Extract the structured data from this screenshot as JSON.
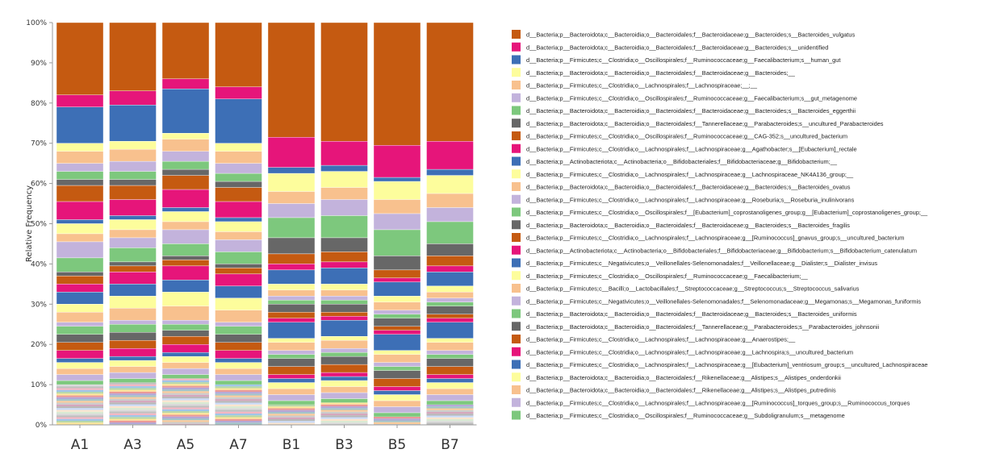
{
  "chart_data": {
    "type": "bar",
    "stacked": true,
    "title": "",
    "xlabel": "",
    "ylabel": "Relative Frequency",
    "ylim": [
      0,
      100
    ],
    "yticks": [
      "0%",
      "10%",
      "20%",
      "30%",
      "40%",
      "50%",
      "60%",
      "70%",
      "80%",
      "90%",
      "100%"
    ],
    "categories": [
      "A1",
      "A3",
      "A5",
      "A7",
      "B1",
      "B3",
      "B5",
      "B7"
    ],
    "legend_position": "right",
    "series": [
      {
        "name": "d__Bacteria;p__Bacteroidota;c__Bacteroidia;o__Bacteroidales;f__Bacteroidaceae;g__Bacteroides;s__Bacteroides_vulgatus",
        "color": "#c55a11",
        "values": [
          18.0,
          17.0,
          14.0,
          16.0,
          28.5,
          29.5,
          30.5,
          29.5
        ]
      },
      {
        "name": "d__Bacteria;p__Bacteroidota;c__Bacteroidia;o__Bacteroidales;f__Bacteroidaceae;g__Bacteroides;s__unidentified",
        "color": "#e6157a",
        "values": [
          3.0,
          3.5,
          2.5,
          3.0,
          7.5,
          6.0,
          8.0,
          7.0
        ]
      },
      {
        "name": "d__Bacteria;p__Firmicutes;c__Clostridia;o__Oscillospirales;f__Ruminococcaceae;g__Faecalibacterium;s__human_gut",
        "color": "#3d6fb6",
        "values": [
          9.0,
          9.0,
          11.0,
          11.0,
          1.5,
          1.5,
          1.0,
          1.5
        ]
      },
      {
        "name": "d__Bacteria;p__Bacteroidota;c__Bacteroidia;o__Bacteroidales;f__Bacteroidaceae;g__Bacteroides;__",
        "color": "#fdfd9c",
        "values": [
          2.0,
          2.0,
          1.5,
          2.0,
          4.5,
          4.0,
          4.5,
          4.5
        ]
      },
      {
        "name": "d__Bacteria;p__Firmicutes;c__Clostridia;o__Lachnospirales;f__Lachnospiraceae;__;__",
        "color": "#f8c18e",
        "values": [
          3.0,
          3.0,
          3.0,
          3.0,
          3.0,
          3.0,
          3.5,
          3.5
        ]
      },
      {
        "name": "d__Bacteria;p__Firmicutes;c__Clostridia;o__Oscillospirales;f__Ruminococcaceae;g__Faecalibacterium;s__gut_metagenome",
        "color": "#c3b3dc",
        "values": [
          2.0,
          2.5,
          2.5,
          2.5,
          3.5,
          4.0,
          4.0,
          3.5
        ]
      },
      {
        "name": "d__Bacteria;p__Bacteroidota;c__Bacteroidia;o__Bacteroidales;f__Bacteroidaceae;g__Bacteroides;s__Bacteroides_eggerthii",
        "color": "#7dc87d",
        "values": [
          2.0,
          2.0,
          2.0,
          2.0,
          5.0,
          5.5,
          6.5,
          5.5
        ]
      },
      {
        "name": "d__Bacteria;p__Bacteroidota;c__Bacteroidia;o__Bacteroidales;f__Tannerellaceae;g__Parabacteroides;s__uncultured_Parabacteroides",
        "color": "#676767",
        "values": [
          1.5,
          1.5,
          1.5,
          1.5,
          4.0,
          3.5,
          3.5,
          3.0
        ]
      },
      {
        "name": "d__Bacteria;p__Firmicutes;c__Clostridia;o__Oscillospirales;f__Ruminococcaceae;g__CAG-352;s__uncultured_bacterium",
        "color": "#c55a11",
        "values": [
          4.0,
          3.5,
          3.5,
          3.5,
          2.5,
          2.5,
          2.0,
          2.5
        ]
      },
      {
        "name": "d__Bacteria;p__Firmicutes;c__Clostridia;o__Lachnospirales;f__Lachnospiraceae;g__Agathobacter;s__[Eubacterium]_rectale",
        "color": "#e6157a",
        "values": [
          4.5,
          4.0,
          4.5,
          4.0,
          1.5,
          1.5,
          1.0,
          1.5
        ]
      },
      {
        "name": "d__Bacteria;p__Actinobacteriota;c__Actinobacteria;o__Bifidobacteriales;f__Bifidobacteriaceae;g__Bifidobacterium;__",
        "color": "#3d6fb6",
        "values": [
          1.0,
          1.0,
          1.0,
          1.0,
          3.5,
          4.0,
          3.5,
          3.5
        ]
      },
      {
        "name": "d__Bacteria;p__Firmicutes;c__Clostridia;o__Lachnospirales;f__Lachnospiraceae;g__Lachnospiraceae_NK4A136_group;__",
        "color": "#fdfd9c",
        "values": [
          2.5,
          2.5,
          2.5,
          2.5,
          1.5,
          1.5,
          1.5,
          1.5
        ]
      },
      {
        "name": "d__Bacteria;p__Bacteroidota;c__Bacteroidia;o__Bacteroidales;f__Bacteroidaceae;g__Bacteroides;s__Bacteroides_ovatus",
        "color": "#f8c18e",
        "values": [
          2.0,
          2.0,
          2.0,
          2.0,
          1.5,
          1.5,
          2.0,
          1.5
        ]
      },
      {
        "name": "d__Bacteria;p__Firmicutes;c__Clostridia;o__Lachnospirales;f__Lachnospiraceae;g__Roseburia;s__Roseburia_inulinivorans",
        "color": "#c3b3dc",
        "values": [
          4.0,
          2.5,
          3.5,
          3.0,
          1.0,
          1.0,
          1.0,
          1.0
        ]
      },
      {
        "name": "d__Bacteria;p__Firmicutes;c__Clostridia;o__Oscillospirales;f__[Eubacterium]_coprostanoligenes_group;g__[Eubacterium]_coprostanoligenes_group;__",
        "color": "#7dc87d",
        "values": [
          3.5,
          3.5,
          3.0,
          3.0,
          1.0,
          1.0,
          1.0,
          1.0
        ]
      },
      {
        "name": "d__Bacteria;p__Bacteroidota;c__Bacteroidia;o__Bacteroidales;f__Bacteroidaceae;g__Bacteroides;s__Bacteroides_fragilis",
        "color": "#676767",
        "values": [
          1.0,
          1.0,
          1.0,
          1.0,
          2.0,
          2.0,
          2.0,
          2.0
        ]
      },
      {
        "name": "d__Bacteria;p__Firmicutes;c__Clostridia;o__Lachnospirales;f__Lachnospiraceae;g__[Ruminococcus]_gnavus_group;s__uncultured_bacterium",
        "color": "#c55a11",
        "values": [
          2.0,
          1.5,
          1.5,
          1.5,
          1.5,
          1.0,
          1.0,
          1.0
        ]
      },
      {
        "name": "d__Bacteria;p__Actinobacteriota;c__Actinobacteria;o__Bifidobacteriales;f__Bifidobacteriaceae;g__Bifidobacterium;s__Bifidobacterium_catenulatum",
        "color": "#e6157a",
        "values": [
          2.0,
          3.0,
          3.5,
          3.0,
          1.0,
          1.0,
          1.0,
          1.0
        ]
      },
      {
        "name": "d__Bacteria;p__Firmicutes;c__Negativicutes;o__Veillonellales-Selenomonadales;f__Veillonellaceae;g__Dialister;s__Dialister_invisus",
        "color": "#3d6fb6",
        "values": [
          3.0,
          3.0,
          3.0,
          3.0,
          4.0,
          4.0,
          4.0,
          4.0
        ]
      },
      {
        "name": "d__Bacteria;p__Firmicutes;c__Clostridia;o__Oscillospirales;f__Ruminococcaceae;g__Faecalibacterium;__",
        "color": "#fdfd9c",
        "values": [
          2.0,
          3.0,
          3.5,
          3.0,
          1.0,
          1.0,
          1.0,
          1.0
        ]
      },
      {
        "name": "d__Bacteria;p__Firmicutes;c__Bacilli;o__Lactobacillales;f__Streptococcaceae;g__Streptococcus;s__Streptococcus_salivarius",
        "color": "#f8c18e",
        "values": [
          2.5,
          3.0,
          3.5,
          3.0,
          2.0,
          2.0,
          2.0,
          2.0
        ]
      },
      {
        "name": "d__Bacteria;p__Firmicutes;c__Negativicutes;o__Veillonellales-Selenomonadales;f__Selenomonadaceae;g__Megamonas;s__Megamonas_funiformis",
        "color": "#c3b3dc",
        "values": [
          1.0,
          1.0,
          1.0,
          1.0,
          1.0,
          1.0,
          1.0,
          1.0
        ]
      },
      {
        "name": "d__Bacteria;p__Bacteroidota;c__Bacteroidia;o__Bacteroidales;f__Bacteroidaceae;g__Bacteroides;s__Bacteroides_uniformis",
        "color": "#7dc87d",
        "values": [
          2.0,
          2.0,
          1.5,
          2.0,
          1.0,
          1.0,
          1.0,
          1.0
        ]
      },
      {
        "name": "d__Bacteria;p__Bacteroidota;c__Bacteroidia;o__Bacteroidales;f__Tannerellaceae;g__Parabacteroides;s__Parabacteroides_johnsonii",
        "color": "#676767",
        "values": [
          2.0,
          2.0,
          1.5,
          2.0,
          2.0,
          2.0,
          2.0,
          2.0
        ]
      },
      {
        "name": "d__Bacteria;p__Firmicutes;c__Clostridia;o__Lachnospirales;f__Lachnospiraceae;g__Anaerostipes;__",
        "color": "#c55a11",
        "values": [
          2.0,
          2.0,
          2.0,
          2.0,
          2.0,
          2.0,
          2.0,
          2.0
        ]
      },
      {
        "name": "d__Bacteria;p__Firmicutes;c__Clostridia;o__Lachnospirales;f__Lachnospiraceae;g__Lachnospira;s__uncultured_bacterium",
        "color": "#e6157a",
        "values": [
          2.0,
          2.0,
          2.0,
          2.0,
          1.0,
          1.0,
          1.0,
          1.0
        ]
      },
      {
        "name": "d__Bacteria;p__Firmicutes;c__Clostridia;o__Lachnospirales;f__Lachnospiraceae;g__[Eubacterium]_ventriosum_group;s__uncultured_Lachnospiraceae",
        "color": "#3d6fb6",
        "values": [
          1.0,
          1.0,
          1.0,
          1.0,
          1.0,
          1.0,
          1.0,
          1.0
        ]
      },
      {
        "name": "d__Bacteria;p__Bacteroidota;c__Bacteroidia;o__Bacteroidales;f__Rikenellaceae;g__Alistipes;s__Alistipes_onderdonkii",
        "color": "#fdfd9c",
        "values": [
          1.5,
          1.5,
          1.5,
          1.5,
          1.5,
          1.5,
          1.5,
          1.5
        ]
      },
      {
        "name": "d__Bacteria;p__Bacteroidota;c__Bacteroidia;o__Bacteroidales;f__Rikenellaceae;g__Alistipes;s__Alistipes_putredinis",
        "color": "#f8c18e",
        "values": [
          1.5,
          1.5,
          1.5,
          1.5,
          1.5,
          1.5,
          1.5,
          1.5
        ]
      },
      {
        "name": "d__Bacteria;p__Firmicutes;c__Clostridia;o__Lachnospirales;f__Lachnospiraceae;g__[Ruminococcus]_torques_group;s__Ruminococcus_torques",
        "color": "#c3b3dc",
        "values": [
          1.5,
          1.5,
          1.5,
          1.5,
          1.5,
          1.5,
          1.5,
          1.5
        ]
      },
      {
        "name": "d__Bacteria;p__Firmicutes;c__Clostridia;o__Oscillospirales;f__Ruminococcaceae;g__Subdoligranulum;s__metagenome",
        "color": "#7dc87d",
        "values": [
          1.0,
          1.0,
          1.0,
          1.0,
          1.0,
          1.0,
          1.0,
          1.0
        ]
      }
    ]
  }
}
